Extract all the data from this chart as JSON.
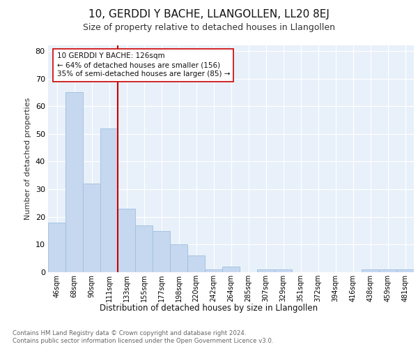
{
  "title": "10, GERDDI Y BACHE, LLANGOLLEN, LL20 8EJ",
  "subtitle": "Size of property relative to detached houses in Llangollen",
  "xlabel": "Distribution of detached houses by size in Llangollen",
  "ylabel": "Number of detached properties",
  "categories": [
    "46sqm",
    "68sqm",
    "90sqm",
    "111sqm",
    "133sqm",
    "155sqm",
    "177sqm",
    "198sqm",
    "220sqm",
    "242sqm",
    "264sqm",
    "285sqm",
    "307sqm",
    "329sqm",
    "351sqm",
    "372sqm",
    "394sqm",
    "416sqm",
    "438sqm",
    "459sqm",
    "481sqm"
  ],
  "values": [
    18,
    65,
    32,
    52,
    23,
    17,
    15,
    10,
    6,
    1,
    2,
    0,
    1,
    1,
    0,
    0,
    0,
    0,
    1,
    1,
    1
  ],
  "bar_color": "#c5d8f0",
  "bar_edge_color": "#a0bedd",
  "property_line_color": "#cc0000",
  "property_line_index": 4,
  "annotation_text": "10 GERDDI Y BACHE: 126sqm\n← 64% of detached houses are smaller (156)\n35% of semi-detached houses are larger (85) →",
  "annotation_box_color": "#ffffff",
  "annotation_box_edge": "#cc0000",
  "footer_line1": "Contains HM Land Registry data © Crown copyright and database right 2024.",
  "footer_line2": "Contains public sector information licensed under the Open Government Licence v3.0.",
  "background_color": "#e8f0fa",
  "grid_color": "#ffffff",
  "ylim": [
    0,
    82
  ],
  "yticks": [
    0,
    10,
    20,
    30,
    40,
    50,
    60,
    70,
    80
  ],
  "title_fontsize": 11,
  "subtitle_fontsize": 9
}
